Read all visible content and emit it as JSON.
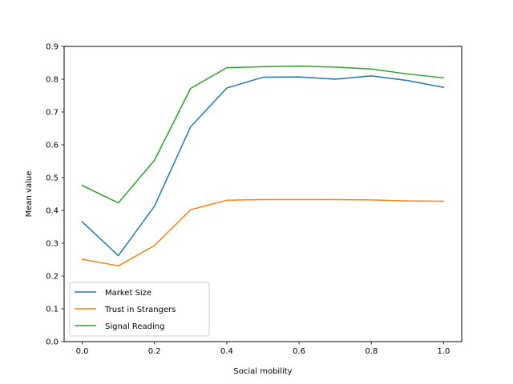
{
  "chart_data": {
    "type": "line",
    "title": "",
    "xlabel": "Social mobility",
    "ylabel": "Mean value",
    "xlim": [
      -0.05,
      1.05
    ],
    "ylim": [
      0.0,
      0.9
    ],
    "x": [
      0.0,
      0.1,
      0.2,
      0.3,
      0.4,
      0.5,
      0.6,
      0.7,
      0.8,
      0.9,
      1.0
    ],
    "xticks": [
      "0.0",
      "0.2",
      "0.4",
      "0.6",
      "0.8",
      "1.0"
    ],
    "yticks": [
      "0.0",
      "0.1",
      "0.2",
      "0.3",
      "0.4",
      "0.5",
      "0.6",
      "0.7",
      "0.8",
      "0.9"
    ],
    "grid": false,
    "legend_position": "lower-left",
    "series": [
      {
        "name": "Market Size",
        "color": "#1f77b4",
        "values": [
          0.365,
          0.262,
          0.413,
          0.655,
          0.773,
          0.806,
          0.807,
          0.8,
          0.81,
          0.796,
          0.775
        ]
      },
      {
        "name": "Trust in Strangers",
        "color": "#ff7f0e",
        "values": [
          0.251,
          0.231,
          0.293,
          0.402,
          0.431,
          0.433,
          0.433,
          0.433,
          0.432,
          0.429,
          0.428
        ]
      },
      {
        "name": "Signal Reading",
        "color": "#2ca02c",
        "values": [
          0.476,
          0.423,
          0.553,
          0.772,
          0.835,
          0.838,
          0.84,
          0.837,
          0.831,
          0.816,
          0.804
        ]
      }
    ]
  }
}
